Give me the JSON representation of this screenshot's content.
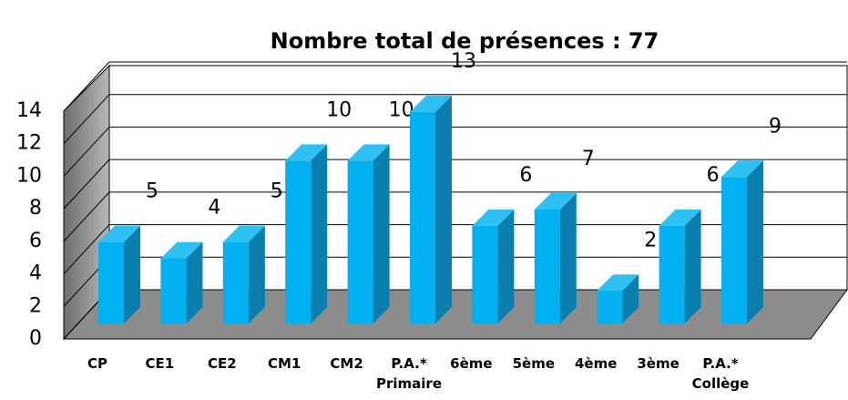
{
  "chart_data": {
    "type": "bar3d",
    "title": "Nombre total de présences : 77",
    "categories": [
      "CP",
      "CE1",
      "CE2",
      "CM1",
      "CM2",
      "P.A.* Primaire",
      "6ème",
      "5ème",
      "4ème",
      "3ème",
      "P.A.* Collège"
    ],
    "values": [
      5,
      4,
      5,
      10,
      10,
      13,
      6,
      7,
      2,
      6,
      9
    ],
    "color": "#00b0f0",
    "ylim": [
      0,
      14
    ],
    "yticks": [
      0,
      2,
      4,
      6,
      8,
      10,
      12,
      14
    ],
    "grid": true
  }
}
